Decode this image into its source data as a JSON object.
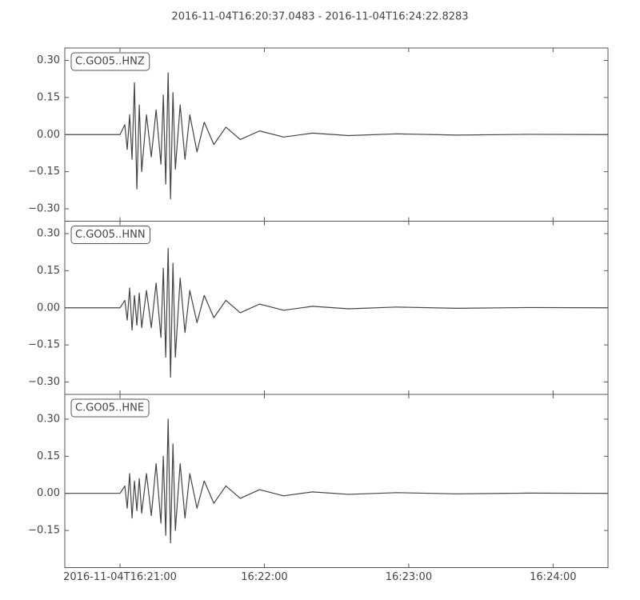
{
  "title": "2016-11-04T16:20:37.0483  -  2016-11-04T16:24:22.8283",
  "chart_data": [
    {
      "type": "line",
      "title": "C.GO05..HNZ",
      "x": [
        "2016-11-04T16:20:37.0483",
        "2016-11-04T16:21:00",
        "2016-11-04T16:21:02",
        "2016-11-04T16:21:03",
        "2016-11-04T16:21:04",
        "2016-11-04T16:21:05",
        "2016-11-04T16:21:06",
        "2016-11-04T16:21:07",
        "2016-11-04T16:21:08",
        "2016-11-04T16:21:09",
        "2016-11-04T16:21:11",
        "2016-11-04T16:21:13",
        "2016-11-04T16:21:15",
        "2016-11-04T16:21:17",
        "2016-11-04T16:21:18",
        "2016-11-04T16:21:19",
        "2016-11-04T16:21:20",
        "2016-11-04T16:21:21",
        "2016-11-04T16:21:22",
        "2016-11-04T16:21:23",
        "2016-11-04T16:21:25",
        "2016-11-04T16:21:27",
        "2016-11-04T16:21:29",
        "2016-11-04T16:21:32",
        "2016-11-04T16:21:35",
        "2016-11-04T16:21:39",
        "2016-11-04T16:21:44",
        "2016-11-04T16:21:50",
        "2016-11-04T16:21:58",
        "2016-11-04T16:22:08",
        "2016-11-04T16:22:20",
        "2016-11-04T16:22:35",
        "2016-11-04T16:22:55",
        "2016-11-04T16:23:20",
        "2016-11-04T16:23:50",
        "2016-11-04T16:24:22.8283"
      ],
      "series": [
        {
          "color": "#444444",
          "values": [
            0,
            0,
            0.04,
            -0.06,
            0.08,
            -0.1,
            0.21,
            -0.22,
            0.12,
            -0.15,
            0.08,
            -0.09,
            0.1,
            -0.12,
            0.16,
            -0.2,
            0.25,
            -0.26,
            0.17,
            -0.14,
            0.12,
            -0.1,
            0.08,
            -0.07,
            0.05,
            -0.04,
            0.03,
            -0.02,
            0.015,
            -0.01,
            0.006,
            -0.004,
            0.003,
            -0.002,
            0.001,
            0
          ]
        }
      ],
      "xlim": [
        "2016-11-04T16:20:37.0483",
        "2016-11-04T16:24:22.8283"
      ],
      "xticks": [
        "2016-11-04T16:21:00",
        "2016-11-04T16:22:00",
        "2016-11-04T16:23:00",
        "2016-11-04T16:24:00"
      ],
      "ylim": [
        -0.35,
        0.35
      ],
      "yticks": [
        {
          "value": 0.3,
          "label": "0.30"
        },
        {
          "value": 0.15,
          "label": "0.15"
        },
        {
          "value": 0,
          "label": "0.00"
        },
        {
          "value": -0.15,
          "label": "−0.15"
        },
        {
          "value": -0.3,
          "label": "−0.30"
        }
      ]
    },
    {
      "type": "line",
      "title": "C.GO05..HNN",
      "x": [
        "2016-11-04T16:20:37.0483",
        "2016-11-04T16:21:00",
        "2016-11-04T16:21:02",
        "2016-11-04T16:21:03",
        "2016-11-04T16:21:04",
        "2016-11-04T16:21:05",
        "2016-11-04T16:21:06",
        "2016-11-04T16:21:07",
        "2016-11-04T16:21:08",
        "2016-11-04T16:21:09",
        "2016-11-04T16:21:11",
        "2016-11-04T16:21:13",
        "2016-11-04T16:21:15",
        "2016-11-04T16:21:17",
        "2016-11-04T16:21:18",
        "2016-11-04T16:21:19",
        "2016-11-04T16:21:20",
        "2016-11-04T16:21:21",
        "2016-11-04T16:21:22",
        "2016-11-04T16:21:23",
        "2016-11-04T16:21:25",
        "2016-11-04T16:21:27",
        "2016-11-04T16:21:29",
        "2016-11-04T16:21:32",
        "2016-11-04T16:21:35",
        "2016-11-04T16:21:39",
        "2016-11-04T16:21:44",
        "2016-11-04T16:21:50",
        "2016-11-04T16:21:58",
        "2016-11-04T16:22:08",
        "2016-11-04T16:22:20",
        "2016-11-04T16:22:35",
        "2016-11-04T16:22:55",
        "2016-11-04T16:23:20",
        "2016-11-04T16:23:50",
        "2016-11-04T16:24:22.8283"
      ],
      "series": [
        {
          "color": "#444444",
          "values": [
            0,
            0,
            0.03,
            -0.05,
            0.08,
            -0.09,
            0.05,
            -0.07,
            0.06,
            -0.08,
            0.07,
            -0.08,
            0.1,
            -0.12,
            0.16,
            -0.2,
            0.24,
            -0.28,
            0.18,
            -0.2,
            0.12,
            -0.1,
            0.07,
            -0.06,
            0.05,
            -0.04,
            0.03,
            -0.02,
            0.015,
            -0.01,
            0.006,
            -0.004,
            0.003,
            -0.002,
            0.001,
            0
          ]
        }
      ],
      "xlim": [
        "2016-11-04T16:20:37.0483",
        "2016-11-04T16:24:22.8283"
      ],
      "xticks": [
        "2016-11-04T16:21:00",
        "2016-11-04T16:22:00",
        "2016-11-04T16:23:00",
        "2016-11-04T16:24:00"
      ],
      "ylim": [
        -0.35,
        0.35
      ],
      "yticks": [
        {
          "value": 0.3,
          "label": "0.30"
        },
        {
          "value": 0.15,
          "label": "0.15"
        },
        {
          "value": 0,
          "label": "0.00"
        },
        {
          "value": -0.15,
          "label": "−0.15"
        },
        {
          "value": -0.3,
          "label": "−0.30"
        }
      ]
    },
    {
      "type": "line",
      "title": "C.GO05..HNE",
      "x": [
        "2016-11-04T16:20:37.0483",
        "2016-11-04T16:21:00",
        "2016-11-04T16:21:02",
        "2016-11-04T16:21:03",
        "2016-11-04T16:21:04",
        "2016-11-04T16:21:05",
        "2016-11-04T16:21:06",
        "2016-11-04T16:21:07",
        "2016-11-04T16:21:08",
        "2016-11-04T16:21:09",
        "2016-11-04T16:21:11",
        "2016-11-04T16:21:13",
        "2016-11-04T16:21:15",
        "2016-11-04T16:21:17",
        "2016-11-04T16:21:18",
        "2016-11-04T16:21:19",
        "2016-11-04T16:21:20",
        "2016-11-04T16:21:21",
        "2016-11-04T16:21:22",
        "2016-11-04T16:21:23",
        "2016-11-04T16:21:25",
        "2016-11-04T16:21:27",
        "2016-11-04T16:21:29",
        "2016-11-04T16:21:32",
        "2016-11-04T16:21:35",
        "2016-11-04T16:21:39",
        "2016-11-04T16:21:44",
        "2016-11-04T16:21:50",
        "2016-11-04T16:21:58",
        "2016-11-04T16:22:08",
        "2016-11-04T16:22:20",
        "2016-11-04T16:22:35",
        "2016-11-04T16:22:55",
        "2016-11-04T16:23:20",
        "2016-11-04T16:23:50",
        "2016-11-04T16:24:22.8283"
      ],
      "series": [
        {
          "color": "#444444",
          "values": [
            0,
            0,
            0.03,
            -0.06,
            0.08,
            -0.1,
            0.05,
            -0.07,
            0.06,
            -0.08,
            0.08,
            -0.09,
            0.12,
            -0.12,
            0.15,
            -0.17,
            0.3,
            -0.2,
            0.2,
            -0.15,
            0.12,
            -0.1,
            0.08,
            -0.06,
            0.05,
            -0.04,
            0.03,
            -0.02,
            0.015,
            -0.01,
            0.006,
            -0.004,
            0.003,
            -0.002,
            0.001,
            0
          ]
        }
      ],
      "xlim": [
        "2016-11-04T16:20:37.0483",
        "2016-11-04T16:24:22.8283"
      ],
      "xticks": [
        "2016-11-04T16:21:00",
        {
          "value": "2016-11-04T16:22:00",
          "label": "16:22:00"
        },
        {
          "value": "2016-11-04T16:23:00",
          "label": "16:23:00"
        },
        {
          "value": "2016-11-04T16:24:00",
          "label": "16:24:00"
        }
      ],
      "ylim": [
        -0.3,
        0.4
      ],
      "yticks": [
        {
          "value": 0.3,
          "label": "0.30"
        },
        {
          "value": 0.15,
          "label": "0.15"
        },
        {
          "value": 0,
          "label": "0.00"
        },
        {
          "value": -0.15,
          "label": "−0.15"
        }
      ]
    }
  ]
}
